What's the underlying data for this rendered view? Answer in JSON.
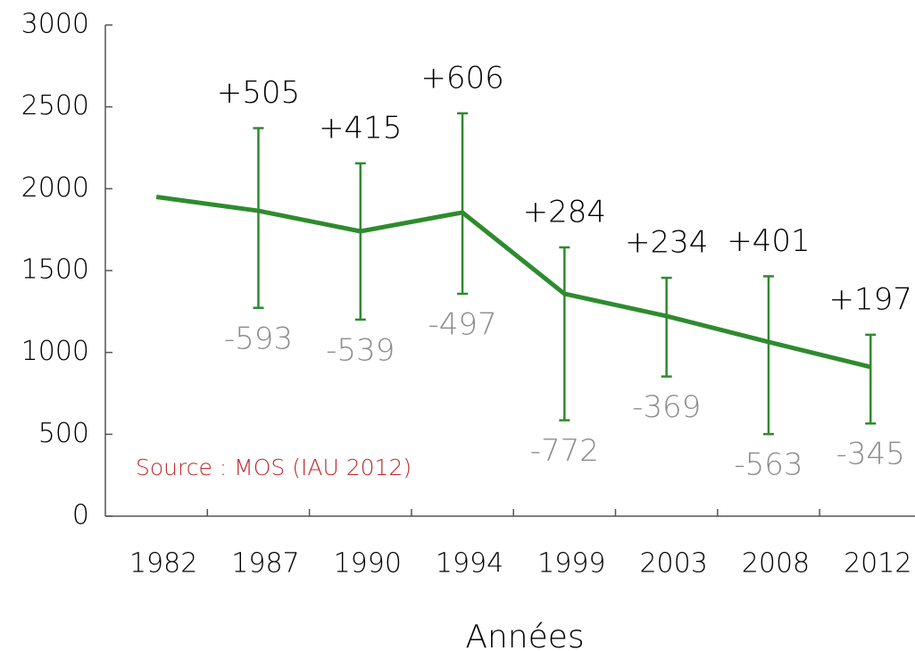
{
  "chart_data": {
    "type": "line",
    "x_label": "Années",
    "annotation": "Source : MOS (IAU 2012)",
    "categories": [
      "1982",
      "1987",
      "1990",
      "1994",
      "1999",
      "2003",
      "2008",
      "2012"
    ],
    "series": [
      {
        "color": "#2e8b2e",
        "values": [
          1950,
          1865,
          1740,
          1855,
          1358,
          1222,
          1064,
          911
        ],
        "error_plus": [
          null,
          505,
          415,
          606,
          284,
          234,
          401,
          197
        ],
        "error_plus_labels": [
          null,
          "+505",
          "+415",
          "+606",
          "+284",
          "+234",
          "+401",
          "+197"
        ],
        "error_minus": [
          null,
          -593,
          -539,
          -497,
          -772,
          -369,
          -563,
          -345
        ]
      }
    ],
    "ylim": [
      0,
      3000
    ],
    "yticks": [
      0,
      500,
      1000,
      1500,
      2000,
      2500,
      3000
    ]
  }
}
